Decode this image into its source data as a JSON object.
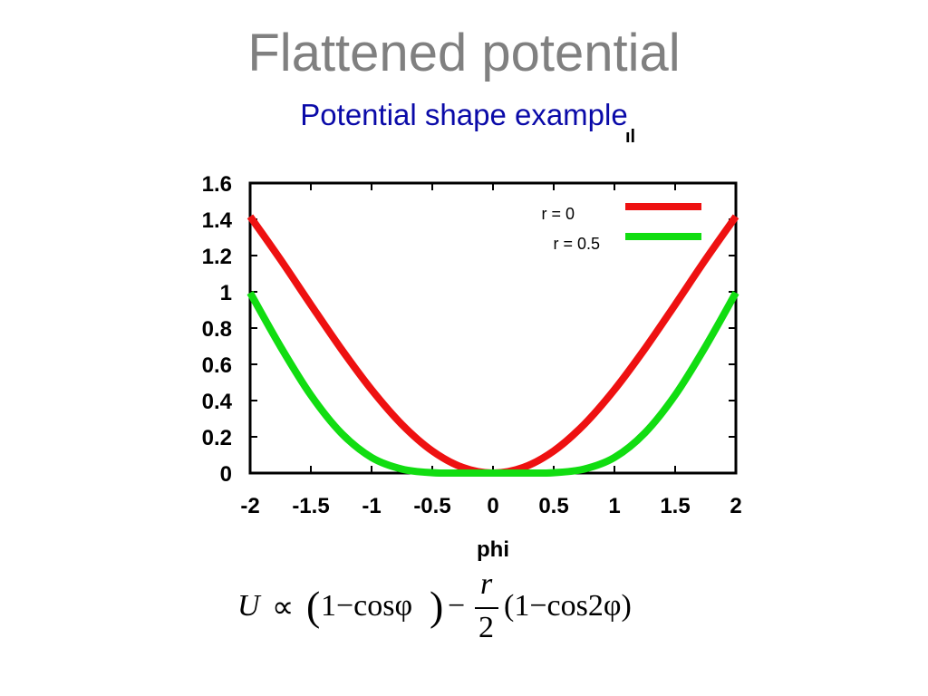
{
  "slide": {
    "title": "Flattened potential",
    "subtitle": "Potential shape example",
    "stray_mark": "ıl"
  },
  "colors": {
    "title": "#808080",
    "subtitle": "#0a0aa8",
    "series_r0": "#ee1111",
    "series_r05": "#11dd11"
  },
  "chart_data": {
    "type": "line",
    "title": "",
    "xlabel": "phi",
    "ylabel": "",
    "xlim": [
      -2,
      2
    ],
    "ylim": [
      0,
      1.6
    ],
    "xticks": [
      "-2",
      "-1.5",
      "-1",
      "-0.5",
      "0",
      "0.5",
      "1",
      "1.5",
      "2"
    ],
    "yticks": [
      "0",
      "0.2",
      "0.4",
      "0.6",
      "0.8",
      "1",
      "1.2",
      "1.4",
      "1.6"
    ],
    "grid": false,
    "legend_position": "top-right",
    "x": [
      -2.0,
      -1.75,
      -1.5,
      -1.25,
      -1.0,
      -0.75,
      -0.5,
      -0.25,
      0.0,
      0.25,
      0.5,
      0.75,
      1.0,
      1.25,
      1.5,
      1.75,
      2.0
    ],
    "series": [
      {
        "name": "r = 0",
        "color": "#ee1111",
        "values": [
          1.416,
          1.178,
          0.929,
          0.685,
          0.46,
          0.268,
          0.122,
          0.031,
          0.0,
          0.031,
          0.122,
          0.268,
          0.46,
          0.685,
          0.929,
          1.178,
          1.416
        ]
      },
      {
        "name": "r = 0.5",
        "color": "#11dd11",
        "values": [
          0.995,
          0.698,
          0.43,
          0.221,
          0.086,
          0.022,
          0.002,
          0.0,
          0.0,
          0.0,
          0.002,
          0.022,
          0.086,
          0.221,
          0.43,
          0.698,
          0.995
        ]
      }
    ]
  },
  "formula": {
    "U": "U",
    "proportional": "∝",
    "lparen_big": "(",
    "term1": "1−cosφ",
    "rparen_big": ")",
    "minus": "−",
    "numerator": "r",
    "denominator": "2",
    "term2": "(1−cos2φ)"
  }
}
